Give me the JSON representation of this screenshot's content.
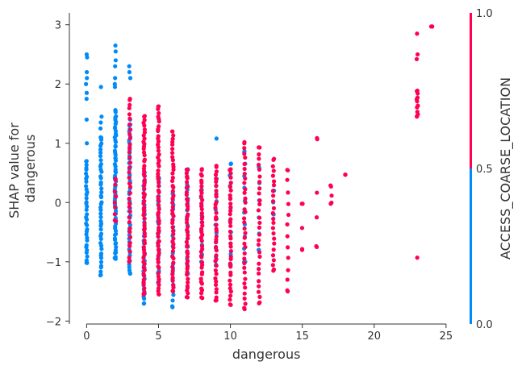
{
  "chart_data": {
    "type": "scatter",
    "xlabel": "dangerous",
    "ylabel_lines": [
      "SHAP value for",
      "dangerous"
    ],
    "xlim": [
      -1.2,
      25.4
    ],
    "ylim": [
      -2.05,
      3.2
    ],
    "xticks": [
      0,
      5,
      10,
      15,
      20,
      25
    ],
    "yticks": [
      -2,
      -1,
      0,
      1,
      2,
      3
    ],
    "colorbar": {
      "label": "ACCESS_COARSE_LOCATION",
      "ticks": [
        {
          "value": 0.0,
          "label": "0.0"
        },
        {
          "value": 0.5,
          "label": "0.5"
        },
        {
          "value": 1.0,
          "label": "1.0"
        }
      ],
      "low_color": "#008bfb",
      "high_color": "#ff0052"
    },
    "series": [
      {
        "color_value": 0,
        "color": "#008bfb",
        "columns": [
          {
            "x": 0,
            "ymin": -1.02,
            "ymax": 0.7,
            "n": 34,
            "extra": [
              2.5,
              2.45,
              2.2,
              2.1,
              2.0,
              1.85,
              1.75,
              1.4,
              1.0
            ]
          },
          {
            "x": 1,
            "ymin": -1.22,
            "ymax": 1.1,
            "n": 44,
            "extra": [
              1.95,
              1.45,
              1.35,
              1.25
            ]
          },
          {
            "x": 2,
            "ymin": -0.95,
            "ymax": 1.55,
            "n": 65,
            "extra": [
              2.65,
              2.55,
              2.4,
              2.3,
              2.1,
              2.0,
              1.95
            ]
          },
          {
            "x": 3,
            "ymin": -1.2,
            "ymax": 1.3,
            "n": 44,
            "extra": [
              2.3,
              2.2,
              2.1,
              1.4
            ]
          },
          {
            "x": 4,
            "ymin": -1.7,
            "ymax": 0.5,
            "n": 38,
            "extra": []
          },
          {
            "x": 5,
            "ymin": -1.35,
            "ymax": 0.4,
            "n": 26,
            "extra": []
          },
          {
            "x": 6,
            "ymin": -1.75,
            "ymax": 0.15,
            "n": 22,
            "extra": []
          },
          {
            "x": 7,
            "ymin": -1.2,
            "ymax": 0.55,
            "n": 16,
            "extra": []
          },
          {
            "x": 8,
            "ymin": -1.0,
            "ymax": 0.2,
            "n": 10,
            "extra": []
          },
          {
            "x": 9,
            "ymin": -1.05,
            "ymax": 0.4,
            "n": 12,
            "extra": [
              1.08
            ]
          },
          {
            "x": 10,
            "ymin": -1.05,
            "ymax": 0.65,
            "n": 10,
            "extra": []
          },
          {
            "x": 11,
            "ymin": -1.0,
            "ymax": 0.85,
            "n": 10,
            "extra": []
          },
          {
            "x": 12,
            "ymin": -0.8,
            "ymax": 0.6,
            "n": 6,
            "extra": []
          },
          {
            "x": 13,
            "ymin": -0.2,
            "ymax": 0.2,
            "n": 3,
            "extra": []
          }
        ]
      },
      {
        "color_value": 1,
        "color": "#ff0052",
        "columns": [
          {
            "x": 2,
            "ymin": -0.3,
            "ymax": 0.4,
            "n": 8,
            "extra": []
          },
          {
            "x": 3,
            "ymin": -1.0,
            "ymax": 1.75,
            "n": 34,
            "extra": []
          },
          {
            "x": 4,
            "ymin": -1.55,
            "ymax": 1.45,
            "n": 60,
            "extra": []
          },
          {
            "x": 5,
            "ymin": -1.55,
            "ymax": 1.62,
            "n": 60,
            "extra": []
          },
          {
            "x": 6,
            "ymin": -1.5,
            "ymax": 1.2,
            "n": 46,
            "extra": []
          },
          {
            "x": 7,
            "ymin": -1.6,
            "ymax": 0.55,
            "n": 42,
            "extra": []
          },
          {
            "x": 8,
            "ymin": -1.6,
            "ymax": 0.55,
            "n": 40,
            "extra": []
          },
          {
            "x": 9,
            "ymin": -1.65,
            "ymax": 0.6,
            "n": 36,
            "extra": []
          },
          {
            "x": 10,
            "ymin": -1.72,
            "ymax": 0.55,
            "n": 34,
            "extra": []
          },
          {
            "x": 11,
            "ymin": -1.78,
            "ymax": 1.0,
            "n": 34,
            "extra": []
          },
          {
            "x": 12,
            "ymin": -1.7,
            "ymax": 0.93,
            "n": 28,
            "extra": []
          },
          {
            "x": 13,
            "ymin": -1.15,
            "ymax": 0.72,
            "n": 22,
            "extra": []
          },
          {
            "x": 14,
            "ymin": -1.5,
            "ymax": 0.55,
            "n": 12,
            "extra": []
          },
          {
            "x": 15,
            "ymin": -0.8,
            "ymax": -0.02,
            "n": 3,
            "extra": []
          },
          {
            "x": 16,
            "ymin": -0.75,
            "ymax": 1.07,
            "n": 3,
            "extra": [
              -0.25
            ]
          },
          {
            "x": 17,
            "ymin": -0.02,
            "ymax": 0.27,
            "n": 3,
            "extra": []
          },
          {
            "x": 18,
            "ymin": 0.47,
            "ymax": 0.47,
            "n": 1,
            "extra": []
          },
          {
            "x": 23,
            "ymin": 1.45,
            "ymax": 1.88,
            "n": 10,
            "extra": [
              2.85,
              2.5,
              2.42,
              -0.93
            ]
          },
          {
            "x": 24,
            "ymin": 2.97,
            "ymax": 2.97,
            "n": 1,
            "extra": []
          }
        ]
      }
    ]
  }
}
